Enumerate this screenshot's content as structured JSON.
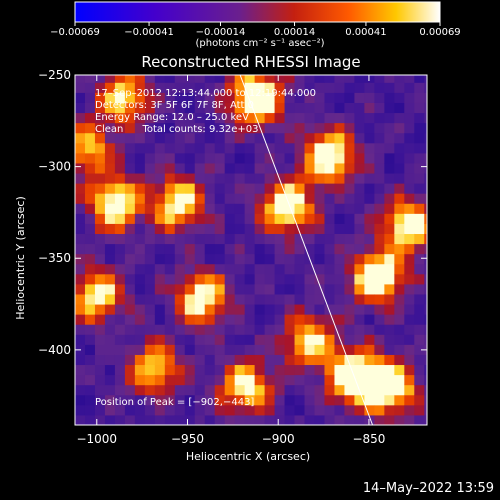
{
  "chart_data": {
    "type": "heatmap",
    "title": "Reconstructed RHESSI Image",
    "xlabel": "Heliocentric X (arcsec)",
    "ylabel": "Heliocentric Y (arcsec)",
    "xlim": [
      -1012,
      -818
    ],
    "ylim": [
      -441,
      -250
    ],
    "x_ticks": [
      -1000,
      -950,
      -900,
      -850
    ],
    "y_ticks": [
      -250,
      -300,
      -350,
      -400
    ],
    "x_tick_labels": [
      "−1000",
      "−950",
      "−900",
      "−850"
    ],
    "y_tick_labels": [
      "−250",
      "−300",
      "−350",
      "−400"
    ],
    "colorbar": {
      "range": [
        -0.00069,
        0.00069
      ],
      "ticks": [
        -0.00069,
        -0.00041,
        -0.00014,
        0.00014,
        0.00041,
        0.00069
      ],
      "tick_labels": [
        "−0.00069",
        "−0.00041",
        "−0.00014",
        "0.00014",
        "0.00041",
        "0.00069"
      ],
      "unit_label": "(photons cm⁻² s⁻¹ asec⁻²)"
    },
    "limb_line": {
      "x": [
        -921,
        -848
      ],
      "y": [
        -250,
        -441
      ]
    },
    "peak": {
      "x": -902,
      "y": -443
    },
    "hot_spots": [
      {
        "x": -912,
        "y": -262,
        "intensity": 1.0
      },
      {
        "x": -872,
        "y": -294,
        "intensity": 0.9
      },
      {
        "x": -895,
        "y": -322,
        "intensity": 0.85
      },
      {
        "x": -990,
        "y": -320,
        "intensity": 0.85
      },
      {
        "x": -955,
        "y": -320,
        "intensity": 0.8
      },
      {
        "x": -1000,
        "y": -370,
        "intensity": 0.75
      },
      {
        "x": -942,
        "y": -372,
        "intensity": 0.8
      },
      {
        "x": -883,
        "y": -395,
        "intensity": 0.7
      },
      {
        "x": -858,
        "y": -415,
        "intensity": 1.0
      },
      {
        "x": -838,
        "y": -420,
        "intensity": 0.9
      },
      {
        "x": -845,
        "y": -360,
        "intensity": 0.95
      },
      {
        "x": -828,
        "y": -332,
        "intensity": 0.8
      },
      {
        "x": -985,
        "y": -262,
        "intensity": 0.7
      },
      {
        "x": -918,
        "y": -420,
        "intensity": 0.75
      },
      {
        "x": -968,
        "y": -410,
        "intensity": 0.65
      },
      {
        "x": -1005,
        "y": -290,
        "intensity": 0.6
      }
    ]
  },
  "annotations": {
    "time_range": "17–Sep–2012 12:13:44.000 to 12:19:44.000",
    "detectors": "Detectors: 3F 5F 6F 7F 8F, Att 0",
    "energy_range": "Energy Range: 12.0 – 25.0 keV",
    "clean_counts": "Clean      Total counts: 9.32e+03",
    "peak_position": "Position of Peak = [−902,−443]"
  },
  "footer": {
    "timestamp": "14–May–2022 13:59"
  },
  "colors": {
    "background": "#000000",
    "axes": "#ffffff",
    "colormap": [
      "#0000ff",
      "#3300aa",
      "#6a1f8e",
      "#cc2200",
      "#ff6600",
      "#ffcc00",
      "#ffffff"
    ]
  }
}
